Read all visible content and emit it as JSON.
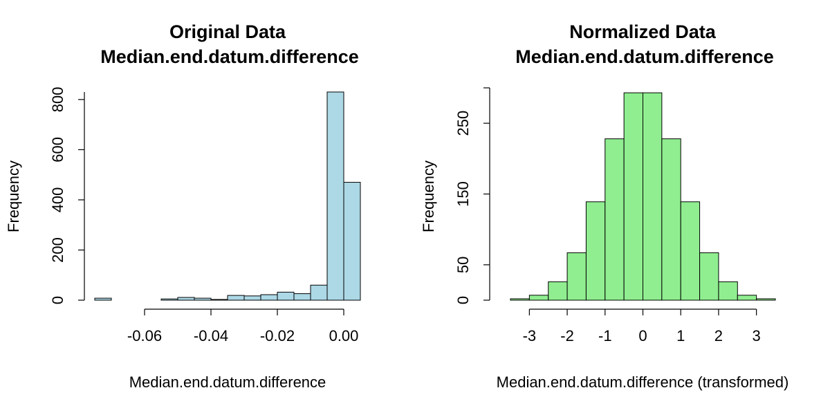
{
  "chart_data": [
    {
      "type": "bar",
      "title": "Original Data",
      "subtitle": "Median.end.datum.difference",
      "xlabel": "Median.end.datum.difference",
      "ylabel": "Frequency",
      "bar_color": "#add8e6",
      "bins": [
        {
          "x0": -0.075,
          "x1": -0.07,
          "count": 8
        },
        {
          "x0": -0.07,
          "x1": -0.065,
          "count": 0
        },
        {
          "x0": -0.065,
          "x1": -0.06,
          "count": 0
        },
        {
          "x0": -0.06,
          "x1": -0.055,
          "count": 0
        },
        {
          "x0": -0.055,
          "x1": -0.05,
          "count": 5
        },
        {
          "x0": -0.05,
          "x1": -0.045,
          "count": 11
        },
        {
          "x0": -0.045,
          "x1": -0.04,
          "count": 8
        },
        {
          "x0": -0.04,
          "x1": -0.035,
          "count": 3
        },
        {
          "x0": -0.035,
          "x1": -0.03,
          "count": 19
        },
        {
          "x0": -0.03,
          "x1": -0.025,
          "count": 17
        },
        {
          "x0": -0.025,
          "x1": -0.02,
          "count": 22
        },
        {
          "x0": -0.02,
          "x1": -0.015,
          "count": 32
        },
        {
          "x0": -0.015,
          "x1": -0.01,
          "count": 26
        },
        {
          "x0": -0.01,
          "x1": -0.005,
          "count": 60
        },
        {
          "x0": -0.005,
          "x1": 0.0,
          "count": 830
        },
        {
          "x0": 0.0,
          "x1": 0.005,
          "count": 470
        }
      ],
      "xlim": [
        -0.075,
        0.005
      ],
      "ylim": [
        0,
        830
      ],
      "xticks": [
        -0.06,
        -0.04,
        -0.02,
        0.0
      ],
      "xtick_labels": [
        "-0.06",
        "-0.04",
        "-0.02",
        "0.00"
      ],
      "yticks": [
        0,
        200,
        400,
        600,
        800
      ],
      "ytick_labels": [
        "0",
        "200",
        "400",
        "600",
        "800"
      ]
    },
    {
      "type": "bar",
      "title": "Normalized Data",
      "subtitle": "Median.end.datum.difference",
      "xlabel": "Median.end.datum.difference (transformed)",
      "ylabel": "Frequency",
      "bar_color": "#90ee90",
      "bins": [
        {
          "x0": -3.5,
          "x1": -3.0,
          "count": 2
        },
        {
          "x0": -3.0,
          "x1": -2.5,
          "count": 7
        },
        {
          "x0": -2.5,
          "x1": -2.0,
          "count": 26
        },
        {
          "x0": -2.0,
          "x1": -1.5,
          "count": 67
        },
        {
          "x0": -1.5,
          "x1": -1.0,
          "count": 139
        },
        {
          "x0": -1.0,
          "x1": -0.5,
          "count": 228
        },
        {
          "x0": -0.5,
          "x1": 0.0,
          "count": 293
        },
        {
          "x0": 0.0,
          "x1": 0.5,
          "count": 293
        },
        {
          "x0": 0.5,
          "x1": 1.0,
          "count": 228
        },
        {
          "x0": 1.0,
          "x1": 1.5,
          "count": 139
        },
        {
          "x0": 1.5,
          "x1": 2.0,
          "count": 67
        },
        {
          "x0": 2.0,
          "x1": 2.5,
          "count": 26
        },
        {
          "x0": 2.5,
          "x1": 3.0,
          "count": 7
        },
        {
          "x0": 3.0,
          "x1": 3.5,
          "count": 2
        }
      ],
      "xlim": [
        -3.5,
        3.5
      ],
      "ylim": [
        0,
        300
      ],
      "xticks": [
        -3,
        -2,
        -1,
        0,
        1,
        2,
        3
      ],
      "xtick_labels": [
        "-3",
        "-2",
        "-1",
        "0",
        "1",
        "2",
        "3"
      ],
      "yticks": [
        0,
        50,
        150,
        250
      ],
      "ytick_labels": [
        "0",
        "50",
        "150",
        "250"
      ],
      "yaxis_max": 300
    }
  ]
}
